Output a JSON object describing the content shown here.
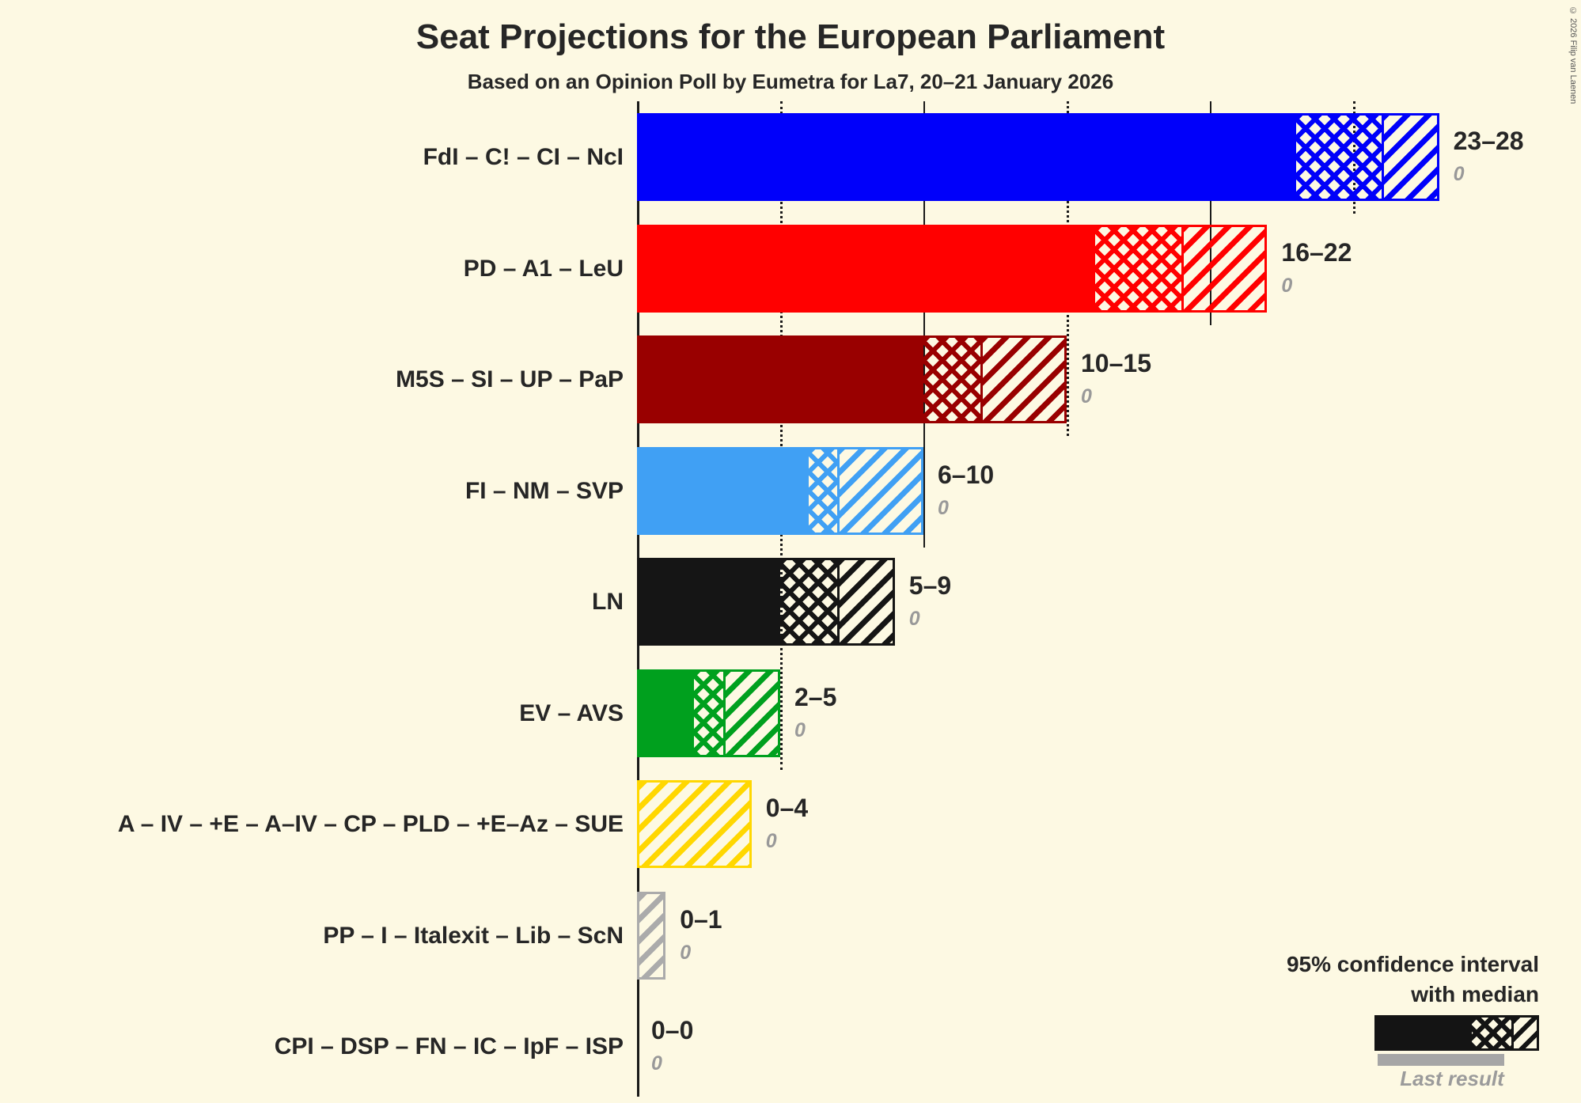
{
  "copyright": "© 2026 Filip van Laenen",
  "legend": {
    "ci_line1": "95% confidence interval",
    "ci_line2": "with median",
    "last_result": "Last result"
  },
  "chart_data": {
    "type": "bar",
    "title": "Seat Projections for the European Parliament",
    "subtitle": "Based on an Opinion Poll by Eumetra for La7, 20–21 January 2026",
    "unit": "seats",
    "axis": {
      "min": 0,
      "max": 30,
      "gridline_step": 5,
      "solid_gridlines": [
        10,
        20
      ],
      "dotted_gridlines": [
        5,
        15,
        25
      ]
    },
    "legend_note": "95% confidence interval with median; gray underline bar = last result",
    "parties": [
      {
        "label": "FdI – C! – CI – NcI",
        "low": 23,
        "median": 26,
        "high": 28,
        "last_result": 0,
        "range_label": "23–28",
        "last_result_label": "0",
        "color": "#0000FA"
      },
      {
        "label": "PD – A1 – LeU",
        "low": 16,
        "median": 19,
        "high": 22,
        "last_result": 0,
        "range_label": "16–22",
        "last_result_label": "0",
        "color": "#FF0000"
      },
      {
        "label": "M5S – SI – UP – PaP",
        "low": 10,
        "median": 12,
        "high": 15,
        "last_result": 0,
        "range_label": "10–15",
        "last_result_label": "0",
        "color": "#990000"
      },
      {
        "label": "FI – NM – SVP",
        "low": 6,
        "median": 7,
        "high": 10,
        "last_result": 0,
        "range_label": "6–10",
        "last_result_label": "0",
        "color": "#40A0F4"
      },
      {
        "label": "LN",
        "low": 5,
        "median": 7,
        "high": 9,
        "last_result": 0,
        "range_label": "5–9",
        "last_result_label": "0",
        "color": "#151515"
      },
      {
        "label": "EV – AVS",
        "low": 2,
        "median": 3,
        "high": 5,
        "last_result": 0,
        "range_label": "2–5",
        "last_result_label": "0",
        "color": "#00A01E"
      },
      {
        "label": "A – IV – +E – A–IV – CP – PLD – +E–Az – SUE",
        "low": 0,
        "median": 0,
        "high": 4,
        "last_result": 0,
        "range_label": "0–4",
        "last_result_label": "0",
        "color": "#FFD700"
      },
      {
        "label": "PP – I – Italexit – Lib – ScN",
        "low": 0,
        "median": 0,
        "high": 1,
        "last_result": 0,
        "range_label": "0–1",
        "last_result_label": "0",
        "color": "#ABABAB"
      },
      {
        "label": "CPI – DSP – FN – IC – IpF – ISP",
        "low": 0,
        "median": 0,
        "high": 0,
        "last_result": 0,
        "range_label": "0–0",
        "last_result_label": "0",
        "color": "#808080"
      }
    ]
  }
}
